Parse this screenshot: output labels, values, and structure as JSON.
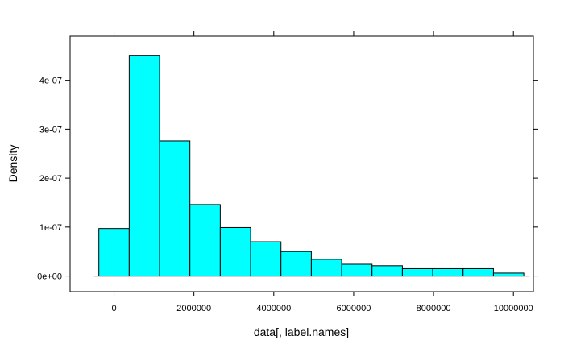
{
  "chart_data": {
    "type": "bar",
    "title": "",
    "xlabel": "data[, label.names]",
    "ylabel": "Density",
    "xlim": [
      -1100000,
      10500000
    ],
    "ylim": [
      -3.2e-08,
      4.9e-07
    ],
    "x_ticks": [
      0,
      2000000,
      4000000,
      6000000,
      8000000,
      10000000
    ],
    "x_tick_labels": [
      "0",
      "2000000",
      "4000000",
      "6000000",
      "8000000",
      "10000000"
    ],
    "y_ticks": [
      0,
      1e-07,
      2e-07,
      3e-07,
      4e-07
    ],
    "y_tick_labels": [
      "0e+00",
      "1e-07",
      "2e-07",
      "3e-07",
      "4e-07"
    ],
    "bin_edges": [
      -380000,
      380000,
      1140000,
      1900000,
      2660000,
      3420000,
      4180000,
      4940000,
      5700000,
      6460000,
      7220000,
      7980000,
      8740000,
      9500000,
      10260000
    ],
    "values": [
      9.7e-08,
      4.51e-07,
      2.76e-07,
      1.46e-07,
      9.9e-08,
      7e-08,
      5e-08,
      3.4e-08,
      2.4e-08,
      2.1e-08,
      1.5e-08,
      1.5e-08,
      1.5e-08,
      6e-09
    ],
    "baseline_range": [
      -500000,
      10400000
    ],
    "bar_color": "#00ffff",
    "edge_color": "#000000",
    "grid": false
  }
}
